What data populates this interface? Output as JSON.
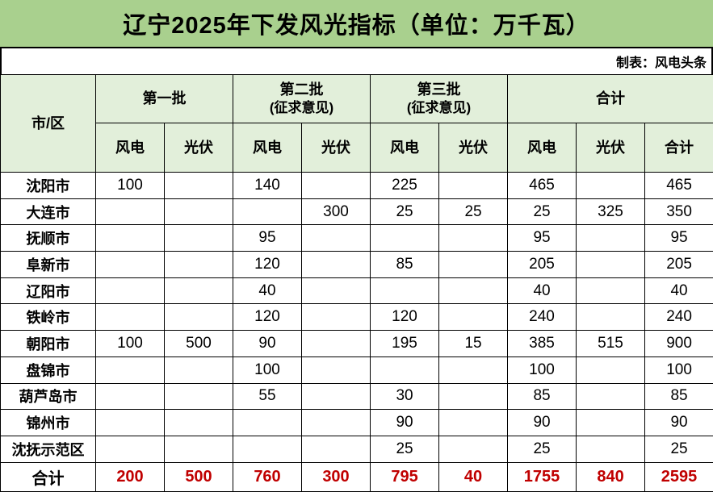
{
  "title": "辽宁2025年下发风光指标（单位：万千瓦）",
  "credit": "制表：风电头条",
  "colors": {
    "title_bg": "#a9d08e",
    "header_bg": "#e2efda",
    "total_red": "#c00000",
    "border_black": "#000000",
    "cell_white": "#ffffff"
  },
  "table": {
    "corner_header": "市/区",
    "groups": [
      {
        "label": "第一批",
        "sublabel": "",
        "cols": [
          "风电",
          "光伏"
        ]
      },
      {
        "label": "第二批",
        "sublabel": "(征求意见)",
        "cols": [
          "风电",
          "光伏"
        ]
      },
      {
        "label": "第三批",
        "sublabel": "(征求意见)",
        "cols": [
          "风电",
          "光伏"
        ]
      },
      {
        "label": "合计",
        "sublabel": "",
        "cols": [
          "风电",
          "光伏",
          "合计"
        ]
      }
    ],
    "rows": [
      {
        "name": "沈阳市",
        "values": [
          "100",
          "",
          "140",
          "",
          "225",
          "",
          "465",
          "",
          "465"
        ]
      },
      {
        "name": "大连市",
        "values": [
          "",
          "",
          "",
          "300",
          "25",
          "25",
          "25",
          "325",
          "350"
        ]
      },
      {
        "name": "抚顺市",
        "values": [
          "",
          "",
          "95",
          "",
          "",
          "",
          "95",
          "",
          "95"
        ]
      },
      {
        "name": "阜新市",
        "values": [
          "",
          "",
          "120",
          "",
          "85",
          "",
          "205",
          "",
          "205"
        ]
      },
      {
        "name": "辽阳市",
        "values": [
          "",
          "",
          "40",
          "",
          "",
          "",
          "40",
          "",
          "40"
        ]
      },
      {
        "name": "铁岭市",
        "values": [
          "",
          "",
          "120",
          "",
          "120",
          "",
          "240",
          "",
          "240"
        ]
      },
      {
        "name": "朝阳市",
        "values": [
          "100",
          "500",
          "90",
          "",
          "195",
          "15",
          "385",
          "515",
          "900"
        ]
      },
      {
        "name": "盘锦市",
        "values": [
          "",
          "",
          "100",
          "",
          "",
          "",
          "100",
          "",
          "100"
        ]
      },
      {
        "name": "葫芦岛市",
        "values": [
          "",
          "",
          "55",
          "",
          "30",
          "",
          "85",
          "",
          "85"
        ]
      },
      {
        "name": "锦州市",
        "values": [
          "",
          "",
          "",
          "",
          "90",
          "",
          "90",
          "",
          "90"
        ]
      },
      {
        "name": "沈抚示范区",
        "values": [
          "",
          "",
          "",
          "",
          "25",
          "",
          "25",
          "",
          "25"
        ]
      }
    ],
    "total_row": {
      "name": "合计",
      "values": [
        "200",
        "500",
        "760",
        "300",
        "795",
        "40",
        "1755",
        "840",
        "2595"
      ]
    }
  }
}
